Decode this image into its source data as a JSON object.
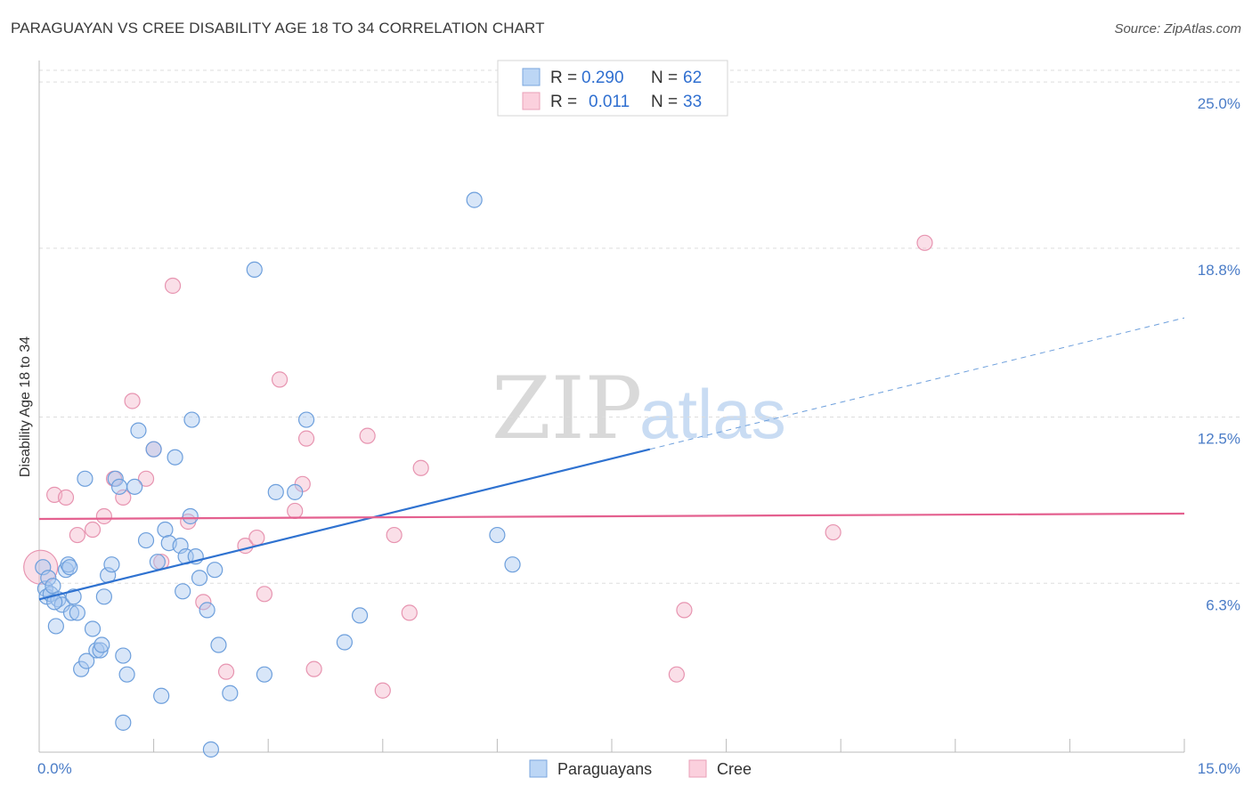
{
  "title": "PARAGUAYAN VS CREE DISABILITY AGE 18 TO 34 CORRELATION CHART",
  "source": "Source: ZipAtlas.com",
  "colors": {
    "blue": "#4a86d4",
    "blue_fill": "#a8c8f0",
    "pink": "#e46b95",
    "pink_fill": "#f5b8cc",
    "grid": "#dddddd",
    "axis_tick": "#4a7cc7"
  },
  "legend": {
    "r_label": "R =",
    "n_label": "N =",
    "rows": [
      {
        "name": "Paraguayans",
        "r": "0.290",
        "n": "62",
        "color": "blue"
      },
      {
        "name": "Cree",
        "r": "0.011",
        "n": "33",
        "color": "pink"
      }
    ]
  },
  "watermark": {
    "zip": "ZIP",
    "atlas": "atlas"
  },
  "chart_data": {
    "type": "scatter",
    "title": "PARAGUAYAN VS CREE DISABILITY AGE 18 TO 34 CORRELATION CHART",
    "xlabel": "",
    "ylabel": "Disability Age 18 to 34",
    "xlim": [
      0,
      15
    ],
    "ylim": [
      0,
      25.8
    ],
    "x_tick_labels": [
      {
        "value": 0,
        "label": "0.0%"
      },
      {
        "value": 15,
        "label": "15.0%"
      }
    ],
    "y_tick_labels": [
      {
        "value": 6.3,
        "label": "6.3%"
      },
      {
        "value": 12.5,
        "label": "12.5%"
      },
      {
        "value": 18.8,
        "label": "18.8%"
      },
      {
        "value": 25.0,
        "label": "25.0%"
      }
    ],
    "series": [
      {
        "name": "Paraguayans",
        "color": "blue",
        "trend": {
          "x0": 0,
          "y0": 5.7,
          "x1": 8.0,
          "y1": 11.3,
          "dash_to_x": 15,
          "dash_to_y": 16.2
        },
        "points": [
          [
            0.05,
            6.9
          ],
          [
            0.08,
            6.1
          ],
          [
            0.1,
            5.8
          ],
          [
            0.12,
            6.5
          ],
          [
            0.15,
            5.9
          ],
          [
            0.18,
            6.2
          ],
          [
            0.22,
            4.7
          ],
          [
            0.25,
            5.7
          ],
          [
            0.3,
            5.5
          ],
          [
            0.35,
            6.8
          ],
          [
            0.38,
            7.0
          ],
          [
            0.42,
            5.2
          ],
          [
            0.45,
            5.8
          ],
          [
            0.5,
            5.2
          ],
          [
            0.55,
            3.1
          ],
          [
            0.6,
            10.2
          ],
          [
            0.62,
            3.4
          ],
          [
            0.7,
            4.6
          ],
          [
            0.75,
            3.8
          ],
          [
            0.8,
            3.8
          ],
          [
            0.82,
            4.0
          ],
          [
            0.85,
            5.8
          ],
          [
            0.9,
            6.6
          ],
          [
            0.95,
            7.0
          ],
          [
            1.0,
            10.2
          ],
          [
            1.05,
            9.9
          ],
          [
            1.1,
            3.6
          ],
          [
            1.15,
            2.9
          ],
          [
            1.25,
            9.9
          ],
          [
            1.3,
            12.0
          ],
          [
            1.4,
            7.9
          ],
          [
            1.5,
            11.3
          ],
          [
            1.55,
            7.1
          ],
          [
            1.6,
            2.1
          ],
          [
            1.65,
            8.3
          ],
          [
            1.7,
            7.8
          ],
          [
            1.78,
            11.0
          ],
          [
            1.85,
            7.7
          ],
          [
            1.88,
            6.0
          ],
          [
            1.92,
            7.3
          ],
          [
            1.98,
            8.8
          ],
          [
            2.0,
            12.4
          ],
          [
            2.05,
            7.3
          ],
          [
            2.1,
            6.5
          ],
          [
            2.2,
            5.3
          ],
          [
            2.3,
            6.8
          ],
          [
            2.35,
            4.0
          ],
          [
            2.5,
            2.2
          ],
          [
            2.82,
            18.0
          ],
          [
            2.95,
            2.9
          ],
          [
            3.1,
            9.7
          ],
          [
            3.35,
            9.7
          ],
          [
            3.5,
            12.4
          ],
          [
            4.0,
            4.1
          ],
          [
            4.2,
            5.1
          ],
          [
            5.7,
            20.6
          ],
          [
            6.0,
            8.1
          ],
          [
            6.2,
            7.0
          ],
          [
            2.25,
            0.1
          ],
          [
            1.1,
            1.1
          ],
          [
            0.2,
            5.6
          ],
          [
            0.4,
            6.9
          ]
        ]
      },
      {
        "name": "Cree",
        "color": "pink",
        "trend": {
          "x0": 0,
          "y0": 8.7,
          "x1": 15,
          "y1": 8.9
        },
        "points": [
          [
            0.02,
            6.9
          ],
          [
            0.2,
            9.6
          ],
          [
            0.35,
            9.5
          ],
          [
            0.5,
            8.1
          ],
          [
            0.7,
            8.3
          ],
          [
            0.85,
            8.8
          ],
          [
            0.98,
            10.2
          ],
          [
            1.1,
            9.5
          ],
          [
            1.22,
            13.1
          ],
          [
            1.4,
            10.2
          ],
          [
            1.5,
            11.3
          ],
          [
            1.6,
            7.1
          ],
          [
            1.75,
            17.4
          ],
          [
            1.95,
            8.6
          ],
          [
            2.15,
            5.6
          ],
          [
            2.45,
            3.0
          ],
          [
            2.7,
            7.7
          ],
          [
            2.85,
            8.0
          ],
          [
            2.95,
            5.9
          ],
          [
            3.15,
            13.9
          ],
          [
            3.35,
            9.0
          ],
          [
            3.45,
            10.0
          ],
          [
            3.5,
            11.7
          ],
          [
            3.6,
            3.1
          ],
          [
            4.3,
            11.8
          ],
          [
            4.5,
            2.3
          ],
          [
            4.65,
            8.1
          ],
          [
            4.85,
            5.2
          ],
          [
            5.0,
            10.6
          ],
          [
            8.35,
            2.9
          ],
          [
            8.45,
            5.3
          ],
          [
            10.4,
            8.2
          ],
          [
            11.6,
            19.0
          ]
        ]
      }
    ]
  }
}
